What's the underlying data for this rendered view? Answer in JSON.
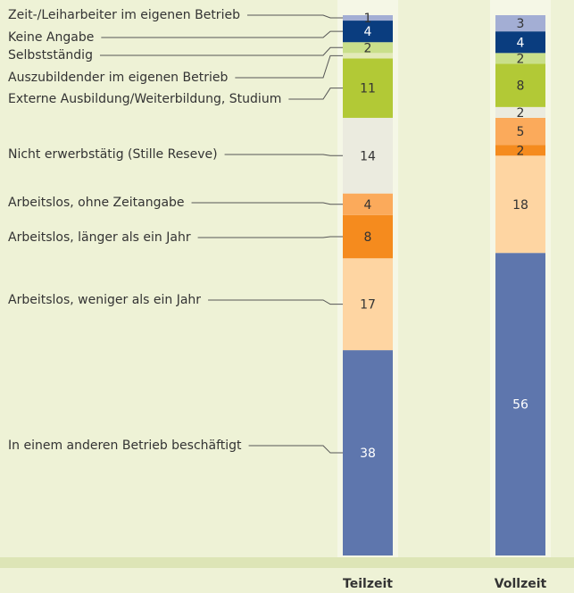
{
  "chart_data": {
    "type": "stacked_bar",
    "categories": [
      "Teilzeit",
      "Vollzeit"
    ],
    "series": [
      {
        "name": "In einem anderen Betrieb beschäftigt",
        "color": "#5e76ad",
        "values": [
          38,
          56
        ]
      },
      {
        "name": "Arbeitslos, weniger als ein Jahr",
        "color": "#fed5a2",
        "values": [
          17,
          18
        ]
      },
      {
        "name": "Arbeitslos, länger als ein Jahr",
        "color": "#f58b1e",
        "values": [
          8,
          2
        ]
      },
      {
        "name": "Arbeitslos, ohne Zeitangabe",
        "color": "#fbaa5b",
        "values": [
          4,
          5
        ]
      },
      {
        "name": "Nicht erwerbstätig (Stille Reseve)",
        "color": "#ebebdf",
        "values": [
          14,
          2
        ]
      },
      {
        "name": "Externe Ausbildung/Weiterbildung, Studium",
        "color": "#b2c936",
        "values": [
          11,
          8
        ]
      },
      {
        "name": "Auszubildender im eigenen Betrieb",
        "color": "#e3eab8",
        "values": [
          1,
          0
        ],
        "value_labels": [
          null,
          null
        ]
      },
      {
        "name": "Selbstständig",
        "color": "#c9df8a",
        "values": [
          2,
          2
        ]
      },
      {
        "name": "Keine Angabe",
        "color": "#0a3d7f",
        "values": [
          4,
          4
        ]
      },
      {
        "name": "Zeit-/Leiharbeiter im eigenen Betrieb",
        "color": "#a3aed4",
        "values": [
          1,
          3
        ]
      }
    ],
    "ylim": [
      0,
      100
    ]
  }
}
